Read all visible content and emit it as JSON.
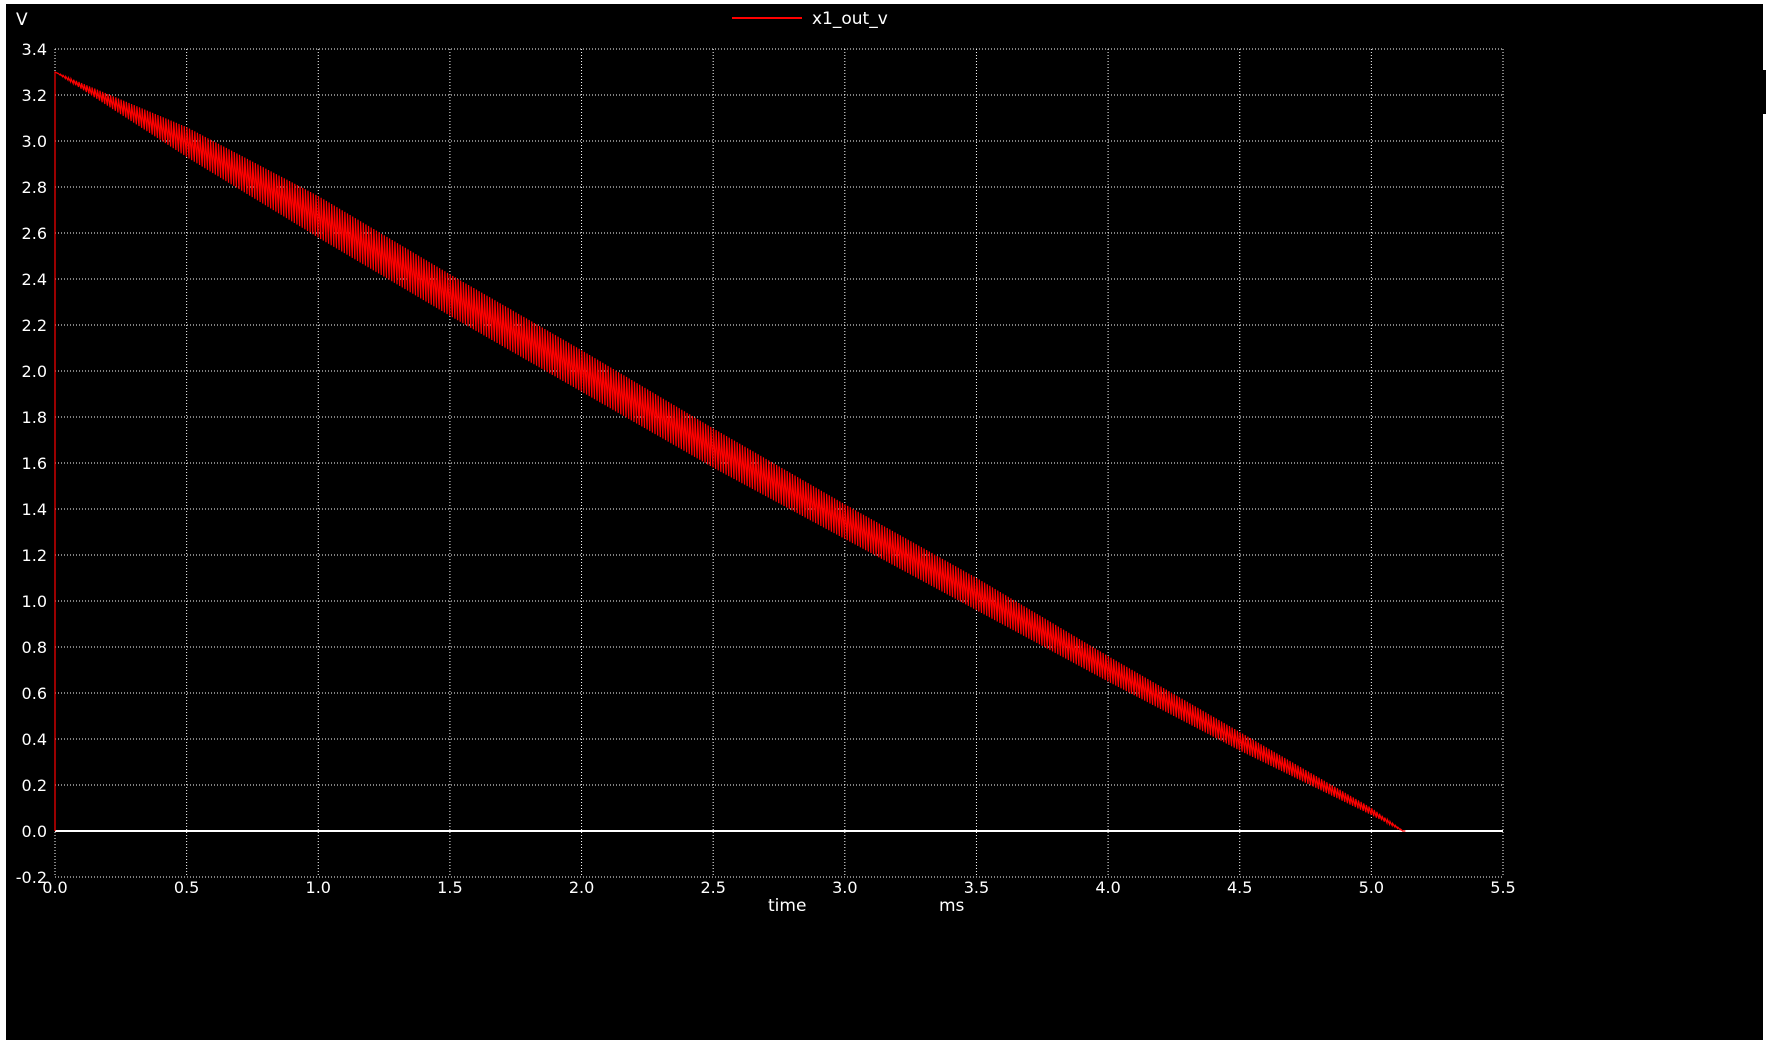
{
  "chart_data": {
    "type": "line",
    "legend": {
      "position": "top-center",
      "entries": [
        "x1_out_v"
      ]
    },
    "yunit": "V",
    "xlabel": "time",
    "xunit": "ms",
    "xlim": [
      0.0,
      5.5
    ],
    "ylim": [
      -0.2,
      3.4
    ],
    "grid": true,
    "xticks": [
      "0.0",
      "0.5",
      "1.0",
      "1.5",
      "2.0",
      "2.5",
      "3.0",
      "3.5",
      "4.0",
      "4.5",
      "5.0",
      "5.5"
    ],
    "yticks": [
      "-0.2",
      "0.0",
      "0.2",
      "0.4",
      "0.6",
      "0.8",
      "1.0",
      "1.2",
      "1.4",
      "1.6",
      "1.8",
      "2.0",
      "2.2",
      "2.4",
      "2.6",
      "2.8",
      "3.0",
      "3.2",
      "3.4"
    ],
    "zero_line": true,
    "series": [
      {
        "name": "x1_out_v",
        "color": "#ff0000",
        "x": [
          0.0,
          0.0,
          0.0,
          0.5,
          1.0,
          1.5,
          2.0,
          2.5,
          3.0,
          3.5,
          4.0,
          4.5,
          5.0,
          5.12
        ],
        "y": [
          0.0,
          3.3,
          3.3,
          2.98,
          2.64,
          2.3,
          1.97,
          1.64,
          1.32,
          1.01,
          0.69,
          0.38,
          0.08,
          0.0
        ],
        "ripple_peak_above": [
          0.0,
          0.0,
          0.0,
          0.08,
          0.12,
          0.12,
          0.12,
          0.11,
          0.1,
          0.09,
          0.07,
          0.05,
          0.02,
          0.0
        ],
        "ripple_trough_below": [
          0.0,
          0.0,
          0.0,
          0.05,
          0.06,
          0.06,
          0.06,
          0.06,
          0.05,
          0.05,
          0.04,
          0.03,
          0.01,
          0.0
        ],
        "ripple_period": 0.01
      }
    ]
  }
}
